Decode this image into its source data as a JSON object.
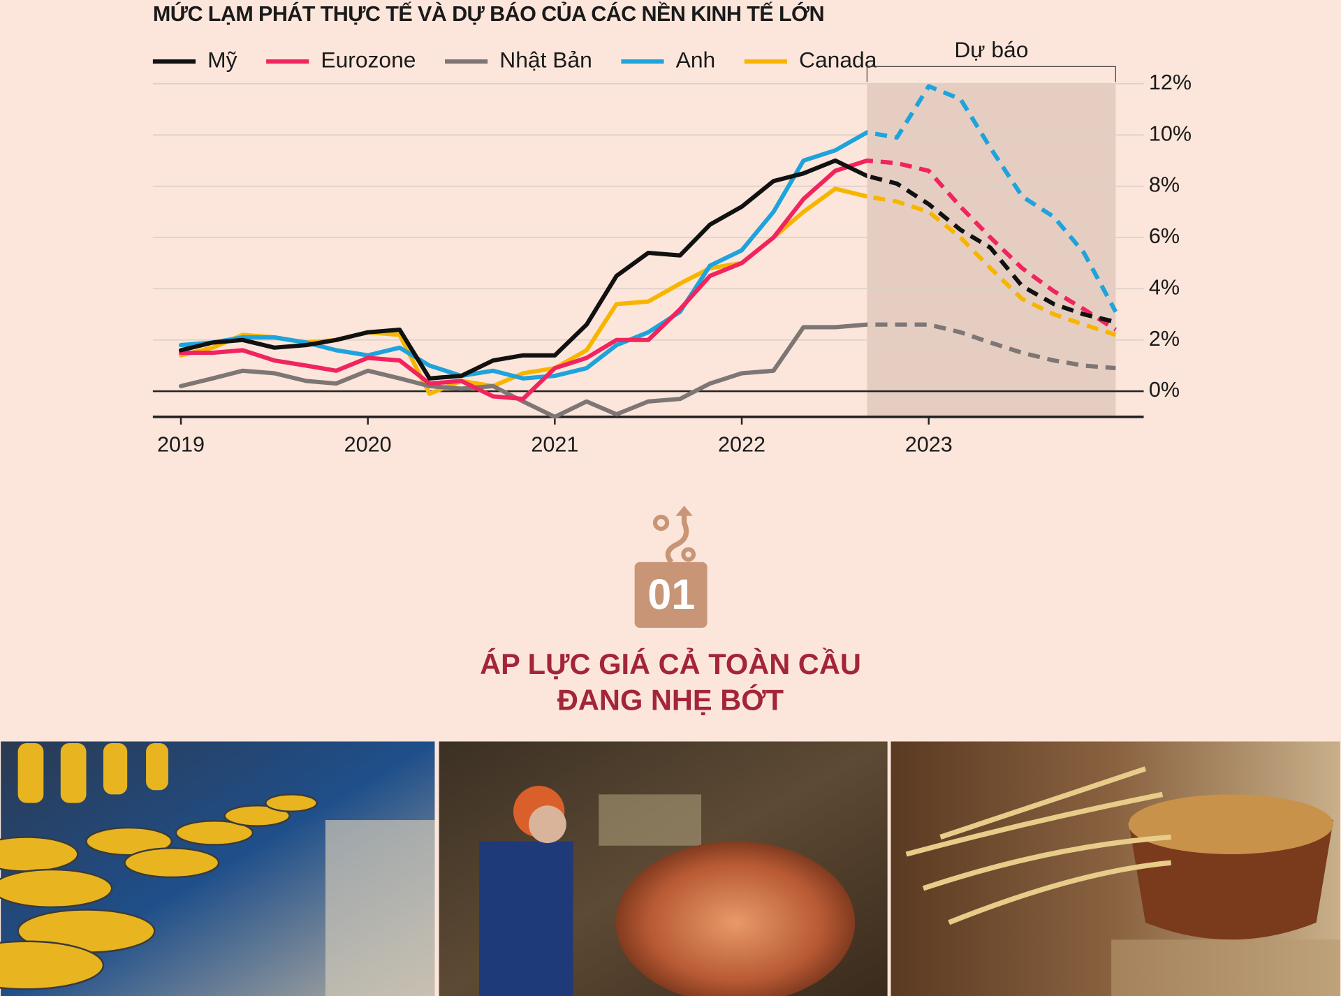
{
  "chart_data": {
    "type": "line",
    "title": "MỨC LẠM PHÁT THỰC TẾ VÀ DỰ BÁO CỦA CÁC NỀN KINH TẾ LỚN",
    "x": [
      2019.0,
      2019.17,
      2019.33,
      2019.5,
      2019.67,
      2019.83,
      2020.0,
      2020.17,
      2020.33,
      2020.5,
      2020.67,
      2020.83,
      2021.0,
      2021.17,
      2021.33,
      2021.5,
      2021.67,
      2021.83,
      2022.0,
      2022.17,
      2022.33,
      2022.5,
      2022.67,
      2022.83,
      2023.0,
      2023.17,
      2023.33,
      2023.5,
      2023.67,
      2023.83,
      2024.0
    ],
    "series": [
      {
        "name": "Mỹ",
        "color": "#111111",
        "values": [
          1.6,
          1.9,
          2.0,
          1.7,
          1.8,
          2.0,
          2.3,
          2.4,
          0.5,
          0.6,
          1.2,
          1.4,
          1.4,
          2.6,
          4.5,
          5.4,
          5.3,
          6.5,
          7.2,
          8.2,
          8.5,
          9.0,
          8.4,
          8.1,
          7.3,
          6.3,
          5.6,
          4.1,
          3.4,
          3.0,
          2.7
        ]
      },
      {
        "name": "Eurozone",
        "color": "#f0245e",
        "values": [
          1.5,
          1.5,
          1.6,
          1.2,
          1.0,
          0.8,
          1.3,
          1.2,
          0.3,
          0.4,
          -0.2,
          -0.3,
          0.9,
          1.3,
          2.0,
          2.0,
          3.2,
          4.5,
          5.0,
          6.0,
          7.5,
          8.6,
          9.0,
          8.9,
          8.6,
          7.2,
          6.0,
          4.8,
          3.9,
          3.2,
          2.4
        ]
      },
      {
        "name": "Nhật Bản",
        "color": "#7d7674",
        "values": [
          0.2,
          0.5,
          0.8,
          0.7,
          0.4,
          0.3,
          0.8,
          0.5,
          0.2,
          0.1,
          0.2,
          -0.4,
          -1.0,
          -0.4,
          -0.9,
          -0.4,
          -0.3,
          0.3,
          0.7,
          0.8,
          2.5,
          2.5,
          2.6,
          2.6,
          2.6,
          2.3,
          1.9,
          1.5,
          1.2,
          1.0,
          0.9
        ]
      },
      {
        "name": "Anh",
        "color": "#1fa3dc",
        "values": [
          1.8,
          1.9,
          2.1,
          2.1,
          1.9,
          1.6,
          1.4,
          1.7,
          1.0,
          0.6,
          0.8,
          0.5,
          0.6,
          0.9,
          1.8,
          2.3,
          3.1,
          4.9,
          5.5,
          7.0,
          9.0,
          9.4,
          10.1,
          9.9,
          11.9,
          11.4,
          9.5,
          7.6,
          6.8,
          5.4,
          3.1
        ]
      },
      {
        "name": "Canada",
        "color": "#f7b500",
        "values": [
          1.4,
          1.7,
          2.2,
          2.1,
          1.9,
          2.0,
          2.3,
          2.2,
          -0.1,
          0.4,
          0.2,
          0.7,
          0.9,
          1.6,
          3.4,
          3.5,
          4.2,
          4.8,
          5.0,
          6.0,
          7.0,
          7.9,
          7.6,
          7.4,
          7.0,
          6.0,
          4.8,
          3.6,
          3.0,
          2.6,
          2.2
        ]
      }
    ],
    "forecast": {
      "label": "Dự báo",
      "x": [
        2022.67,
        2024.0
      ]
    },
    "xlim": [
      2018.85,
      2024.15
    ],
    "xticks": [
      2019,
      2020,
      2021,
      2022,
      2023
    ],
    "ylim": [
      -1,
      12
    ],
    "yticks": [
      {
        "value": 0,
        "label": "0%"
      },
      {
        "value": 2,
        "label": "2%"
      },
      {
        "value": 4,
        "label": "4%"
      },
      {
        "value": 6,
        "label": "6%"
      },
      {
        "value": 8,
        "label": "8%"
      },
      {
        "value": 10,
        "label": "10%"
      },
      {
        "value": 12,
        "label": "12%"
      }
    ],
    "grid": true
  },
  "section": {
    "number": "01",
    "title_lines": [
      "ÁP LỰC GIÁ CẢ TOÀN CẦU",
      "ĐANG NHẸ BỚT"
    ]
  }
}
